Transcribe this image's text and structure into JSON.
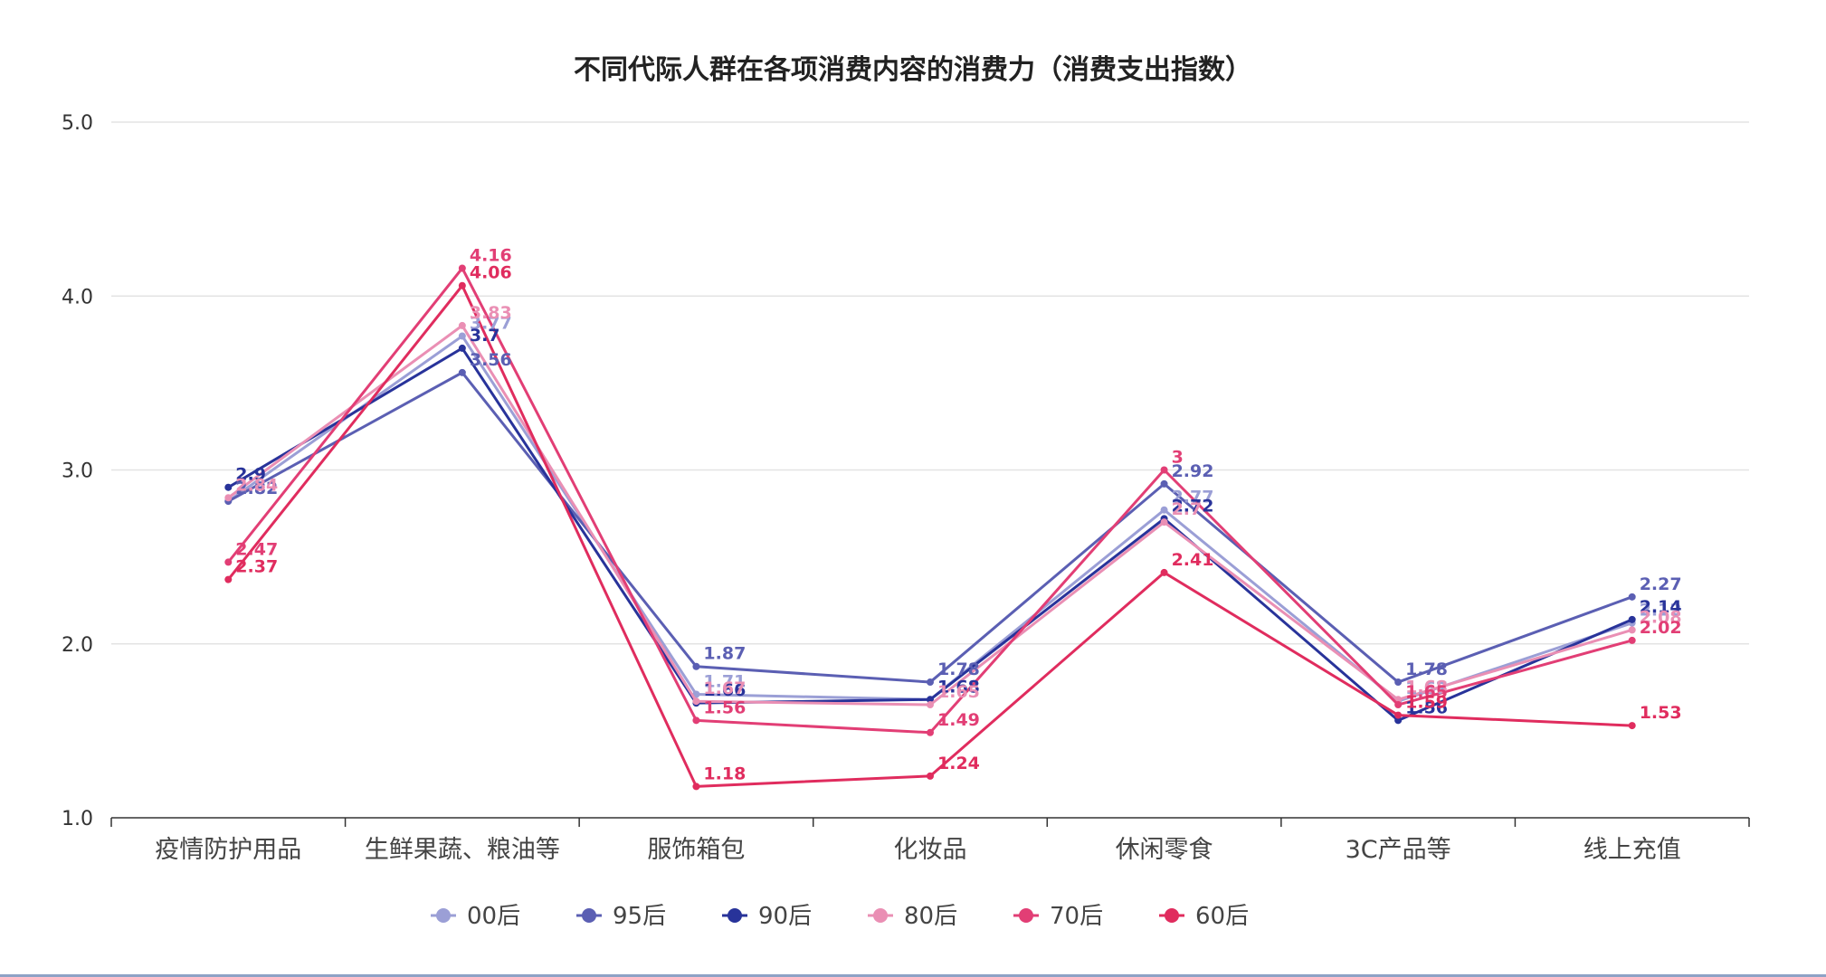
{
  "chart_data": {
    "type": "line",
    "title": "不同代际人群在各项消费内容的消费力（消费支出指数）",
    "xlabel": "",
    "ylabel": "",
    "ylim": [
      1.0,
      5.0
    ],
    "yticks": [
      "1.0",
      "2.0",
      "3.0",
      "4.0",
      "5.0"
    ],
    "grid": true,
    "legend_position": "bottom",
    "categories": [
      "疫情防护用品",
      "生鲜果蔬、粮油等",
      "服饰箱包",
      "化妆品",
      "休闲零食",
      "3C产品等",
      "线上充值"
    ],
    "series": [
      {
        "name": "00后",
        "color": "#9b9fd6",
        "values": [
          2.82,
          3.77,
          1.71,
          1.68,
          2.77,
          1.67,
          2.12
        ]
      },
      {
        "name": "95后",
        "color": "#5b5fb3",
        "values": [
          2.82,
          3.56,
          1.87,
          1.78,
          2.92,
          1.78,
          2.27
        ]
      },
      {
        "name": "90后",
        "color": "#28339a",
        "values": [
          2.9,
          3.7,
          1.66,
          1.68,
          2.72,
          1.56,
          2.14
        ]
      },
      {
        "name": "80后",
        "color": "#ea8fb4",
        "values": [
          2.84,
          3.83,
          1.67,
          1.65,
          2.7,
          1.68,
          2.08
        ]
      },
      {
        "name": "70后",
        "color": "#e23e75",
        "values": [
          2.47,
          4.16,
          1.56,
          1.49,
          3.0,
          1.65,
          2.02
        ]
      },
      {
        "name": "60后",
        "color": "#e02c5e",
        "values": [
          2.37,
          4.06,
          1.18,
          1.24,
          2.41,
          1.59,
          1.53
        ]
      }
    ]
  }
}
